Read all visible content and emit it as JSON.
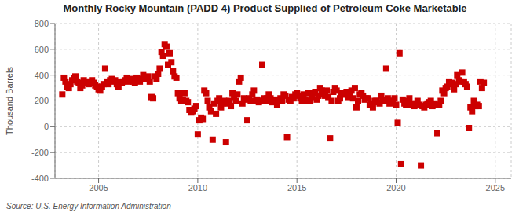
{
  "chart_data": {
    "type": "scatter",
    "title": "Monthly Rocky Mountain (PADD 4) Product Supplied of Petroleum Coke Marketable",
    "y_label": "Thousand Barrels",
    "annotations": [
      "Source: U.S. Energy Information Administration"
    ],
    "color": "#cc0000",
    "marker": "square",
    "grid": true,
    "xlim": [
      2002.8,
      2025.8
    ],
    "xticks": [
      2005,
      2010,
      2015,
      2020,
      2025
    ],
    "ylim": [
      -400,
      800
    ],
    "yticks": [
      -400,
      -200,
      0,
      200,
      400,
      600,
      800
    ],
    "x": [
      2003.17,
      2003.25,
      2003.33,
      2003.42,
      2003.5,
      2003.58,
      2003.67,
      2003.75,
      2003.83,
      2003.92,
      2004.0,
      2004.08,
      2004.17,
      2004.25,
      2004.33,
      2004.42,
      2004.5,
      2004.58,
      2004.67,
      2004.75,
      2004.83,
      2004.92,
      2005.0,
      2005.08,
      2005.17,
      2005.25,
      2005.33,
      2005.42,
      2005.5,
      2005.58,
      2005.67,
      2005.75,
      2005.83,
      2005.92,
      2006.0,
      2006.08,
      2006.17,
      2006.25,
      2006.33,
      2006.42,
      2006.5,
      2006.58,
      2006.67,
      2006.75,
      2006.83,
      2006.92,
      2007.0,
      2007.08,
      2007.17,
      2007.25,
      2007.33,
      2007.42,
      2007.5,
      2007.58,
      2007.67,
      2007.75,
      2007.83,
      2007.92,
      2008.0,
      2008.08,
      2008.17,
      2008.25,
      2008.33,
      2008.42,
      2008.5,
      2008.58,
      2008.67,
      2008.75,
      2008.83,
      2008.92,
      2009.0,
      2009.08,
      2009.17,
      2009.25,
      2009.33,
      2009.42,
      2009.5,
      2009.58,
      2009.67,
      2009.75,
      2009.83,
      2009.92,
      2010.0,
      2010.08,
      2010.17,
      2010.25,
      2010.33,
      2010.42,
      2010.5,
      2010.58,
      2010.67,
      2010.75,
      2010.83,
      2010.92,
      2011.0,
      2011.08,
      2011.17,
      2011.25,
      2011.33,
      2011.42,
      2011.5,
      2011.58,
      2011.67,
      2011.75,
      2011.83,
      2011.92,
      2012.0,
      2012.08,
      2012.17,
      2012.25,
      2012.33,
      2012.42,
      2012.5,
      2012.58,
      2012.67,
      2012.75,
      2012.83,
      2012.92,
      2013.0,
      2013.08,
      2013.17,
      2013.25,
      2013.33,
      2013.42,
      2013.5,
      2013.58,
      2013.67,
      2013.75,
      2013.83,
      2013.92,
      2014.0,
      2014.08,
      2014.17,
      2014.25,
      2014.33,
      2014.42,
      2014.5,
      2014.58,
      2014.67,
      2014.75,
      2014.83,
      2014.92,
      2015.0,
      2015.08,
      2015.17,
      2015.25,
      2015.33,
      2015.42,
      2015.5,
      2015.58,
      2015.67,
      2015.75,
      2015.83,
      2015.92,
      2016.0,
      2016.08,
      2016.17,
      2016.25,
      2016.33,
      2016.42,
      2016.5,
      2016.58,
      2016.67,
      2016.75,
      2016.83,
      2016.92,
      2017.0,
      2017.08,
      2017.17,
      2017.25,
      2017.33,
      2017.42,
      2017.5,
      2017.58,
      2017.67,
      2017.75,
      2017.83,
      2017.92,
      2018.0,
      2018.08,
      2018.17,
      2018.25,
      2018.33,
      2018.42,
      2018.5,
      2018.58,
      2018.67,
      2018.75,
      2018.83,
      2018.92,
      2019.0,
      2019.08,
      2019.17,
      2019.25,
      2019.33,
      2019.42,
      2019.5,
      2019.58,
      2019.67,
      2019.75,
      2019.83,
      2019.92,
      2020.0,
      2020.08,
      2020.17,
      2020.25,
      2020.33,
      2020.42,
      2020.5,
      2020.58,
      2020.67,
      2020.75,
      2020.83,
      2020.92,
      2021.0,
      2021.08,
      2021.17,
      2021.25,
      2021.33,
      2021.42,
      2021.5,
      2021.58,
      2021.67,
      2021.75,
      2021.83,
      2021.92,
      2022.0,
      2022.08,
      2022.17,
      2022.25,
      2022.33,
      2022.42,
      2022.5,
      2022.58,
      2022.67,
      2022.75,
      2022.83,
      2022.92,
      2023.0,
      2023.08,
      2023.17,
      2023.25,
      2023.33,
      2023.42,
      2023.5,
      2023.58,
      2023.67,
      2023.75,
      2023.83,
      2023.92,
      2024.0,
      2024.08,
      2024.17,
      2024.25,
      2024.33,
      2024.42
    ],
    "values": [
      250,
      380,
      350,
      310,
      300,
      330,
      360,
      380,
      390,
      350,
      340,
      300,
      320,
      360,
      340,
      350,
      330,
      350,
      360,
      340,
      320,
      310,
      290,
      280,
      310,
      330,
      450,
      350,
      330,
      360,
      370,
      350,
      360,
      330,
      310,
      350,
      340,
      350,
      360,
      380,
      350,
      360,
      370,
      350,
      340,
      380,
      370,
      350,
      370,
      400,
      380,
      370,
      390,
      350,
      230,
      220,
      390,
      370,
      410,
      450,
      580,
      550,
      640,
      620,
      480,
      570,
      500,
      430,
      390,
      380,
      260,
      220,
      200,
      210,
      260,
      200,
      190,
      130,
      110,
      120,
      140,
      160,
      -60,
      50,
      70,
      60,
      280,
      260,
      200,
      150,
      120,
      -100,
      180,
      100,
      200,
      220,
      150,
      180,
      200,
      -120,
      180,
      200,
      160,
      260,
      230,
      200,
      250,
      350,
      380,
      180,
      220,
      210,
      50,
      220,
      200,
      250,
      280,
      200,
      210,
      190,
      200,
      480,
      220,
      200,
      220,
      250,
      220,
      190,
      200,
      210,
      170,
      200,
      220,
      200,
      250,
      240,
      -80,
      210,
      200,
      230,
      220,
      250,
      260,
      240,
      220,
      200,
      250,
      210,
      200,
      260,
      200,
      230,
      260,
      270,
      210,
      240,
      300,
      280,
      250,
      240,
      280,
      230,
      -90,
      200,
      270,
      300,
      280,
      200,
      220,
      260,
      250,
      250,
      270,
      230,
      260,
      280,
      220,
      300,
      150,
      200,
      250,
      260,
      240,
      210,
      220,
      220,
      170,
      180,
      150,
      200,
      200,
      190,
      180,
      240,
      210,
      200,
      450,
      220,
      180,
      200,
      200,
      220,
      170,
      30,
      570,
      -290,
      210,
      180,
      170,
      200,
      220,
      170,
      180,
      160,
      180,
      200,
      170,
      -300,
      160,
      150,
      170,
      180,
      190,
      200,
      160,
      180,
      170,
      -50,
      170,
      200,
      280,
      260,
      300,
      310,
      350,
      330,
      340,
      290,
      330,
      400,
      360,
      350,
      420,
      350,
      330,
      310,
      -10,
      150,
      120,
      200,
      160,
      170,
      160,
      350,
      300,
      340
    ]
  }
}
